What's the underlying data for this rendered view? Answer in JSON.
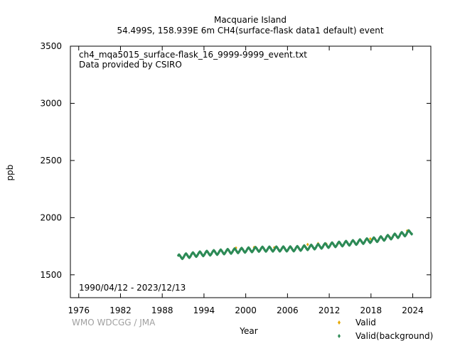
{
  "chart_data": {
    "type": "scatter",
    "title": "Macquarie Island",
    "subtitle": "54.499S, 158.939E 6m    CH4(surface-flask data1 default) event",
    "file_label": "ch4_mqa5015_surface-flask_16_9999-9999_event.txt",
    "provider_label": "Data provided by CSIRO",
    "date_range_label": "1990/04/12 - 2023/12/13",
    "credit": "WMO WDCGG / JMA",
    "xlabel": "Year",
    "ylabel": "ppb",
    "xlim": [
      1974.8,
      2026.6
    ],
    "ylim": [
      1300,
      3500
    ],
    "x_ticks": [
      1976,
      1982,
      1988,
      1994,
      2000,
      2006,
      2012,
      2018,
      2024
    ],
    "y_ticks": [
      1500,
      2000,
      2500,
      3000,
      3500
    ],
    "legend_position": "bottom-right",
    "series": [
      {
        "name": "Valid",
        "color": "#e6a800",
        "marker": "diamond",
        "points": [
          [
            1998.6,
            1735
          ],
          [
            2001.2,
            1740
          ],
          [
            2004.1,
            1738
          ],
          [
            2008.9,
            1765
          ],
          [
            2010.4,
            1774
          ],
          [
            2011.6,
            1768
          ],
          [
            2013.3,
            1776
          ],
          [
            2017.9,
            1815
          ],
          [
            2020.7,
            1830
          ],
          [
            2023.2,
            1885
          ]
        ]
      },
      {
        "name": "Valid(background)",
        "color": "#2e8b57",
        "marker": "diamond",
        "trend": [
          [
            1990.3,
            1655
          ],
          [
            1993,
            1680
          ],
          [
            1996,
            1697
          ],
          [
            1999,
            1712
          ],
          [
            2002,
            1724
          ],
          [
            2005,
            1726
          ],
          [
            2007,
            1727
          ],
          [
            2010,
            1745
          ],
          [
            2013,
            1765
          ],
          [
            2016,
            1785
          ],
          [
            2019,
            1810
          ],
          [
            2022,
            1845
          ],
          [
            2023.9,
            1875
          ]
        ],
        "seasonal_amplitude": 18,
        "start": "1990/04/12",
        "end": "2023/12/13"
      }
    ]
  }
}
